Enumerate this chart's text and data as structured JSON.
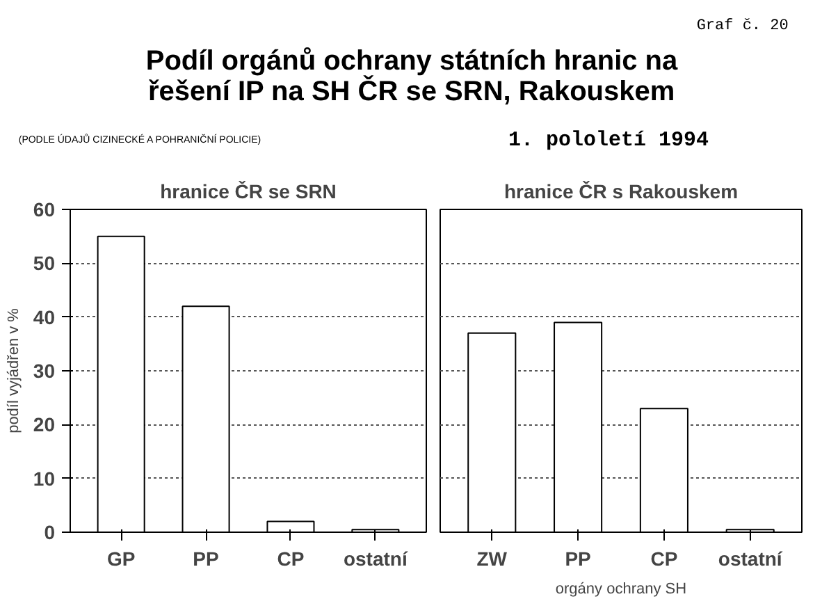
{
  "chart_data": [
    {
      "type": "other",
      "title": "Podíl orgánů ochrany státních hranic na řešení IP na SH ČR se SRN, Rakouskem",
      "subtitle": "1.  pololetí  1994",
      "annotations": [
        "Graf č. 20",
        "(PODLE ÚDAJŮ CIZINECKÉ A POHRANIČNÍ POLICIE)"
      ]
    },
    {
      "type": "bar",
      "title": "hranice ČR se SRN",
      "ylabel": "podíl vyjádřen v %",
      "categories": [
        "GP",
        "PP",
        "CP",
        "ostatní"
      ],
      "values": [
        55,
        42,
        2,
        0.5
      ],
      "color": "#ffffff",
      "ylim": [
        0,
        60
      ],
      "yticks": [
        0,
        10,
        20,
        30,
        40,
        50,
        60
      ],
      "grid": "y"
    },
    {
      "type": "bar",
      "title": "hranice ČR s Rakouskem",
      "xlabel": "orgány ochrany SH",
      "categories": [
        "ZW",
        "PP",
        "CP",
        "ostatní"
      ],
      "values": [
        37,
        39,
        23,
        0.5
      ],
      "color": "#ffffff",
      "ylim": [
        0,
        60
      ],
      "yticks": [
        0,
        10,
        20,
        30,
        40,
        50,
        60
      ],
      "grid": "y",
      "tick_labels": "x"
    }
  ]
}
